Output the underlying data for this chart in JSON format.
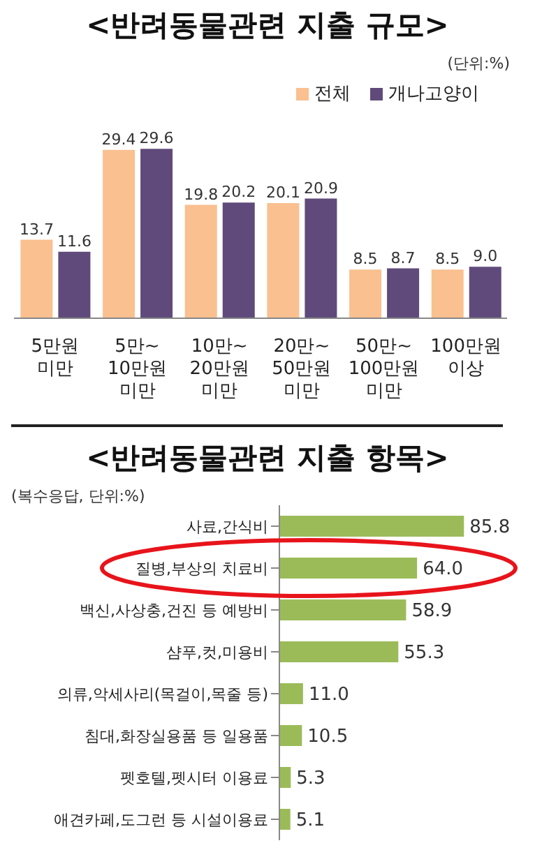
{
  "chart_data": [
    {
      "type": "bar",
      "title": "<반려동물관련 지출 규모>",
      "annotations": [
        "(단위:%)"
      ],
      "categories": [
        "5만원 미만",
        "5만~10만원 미만",
        "10만~20만원 미만",
        "20만~50만원 미만",
        "50만~100만원 미만",
        "100만원 이상"
      ],
      "series": [
        {
          "name": "전체",
          "color": "#fac090",
          "values": [
            13.7,
            29.4,
            19.8,
            20.1,
            8.5,
            8.5
          ],
          "value_labels": [
            "13.7",
            "29.4",
            "19.8",
            "20.1",
            "8.5",
            "8.5"
          ]
        },
        {
          "name": "개나고양이",
          "color": "#604a7b",
          "values": [
            11.6,
            29.6,
            20.2,
            20.9,
            8.7,
            9.0
          ],
          "value_labels": [
            "11.6",
            "29.6",
            "20.2",
            "20.9",
            "8.7",
            "9.0"
          ]
        }
      ],
      "legend": "top right"
    },
    {
      "type": "bar",
      "orientation": "horizontal",
      "title": "<반려동물관련 지출 항목>",
      "annotations": [
        "(복수응답, 단위:%)"
      ],
      "categories": [
        "사료,간식비",
        "질병,부상의 치료비",
        "백신,사상충,건진 등 예방비",
        "샴푸,컷,미용비",
        "의류,악세사리(목걸이,목줄 등)",
        "침대,화장실용품 등 일용품",
        "펫호텔,펫시터 이용료",
        "애견카페,도그런 등 시설이용료"
      ],
      "values": [
        85.8,
        64.0,
        58.9,
        55.3,
        11.0,
        10.5,
        5.3,
        5.1
      ],
      "value_labels": [
        "85.8",
        "64.0",
        "58.9",
        "55.3",
        "11.0",
        "10.5",
        "5.3",
        "5.1"
      ],
      "color": "#9bbb59"
    }
  ]
}
